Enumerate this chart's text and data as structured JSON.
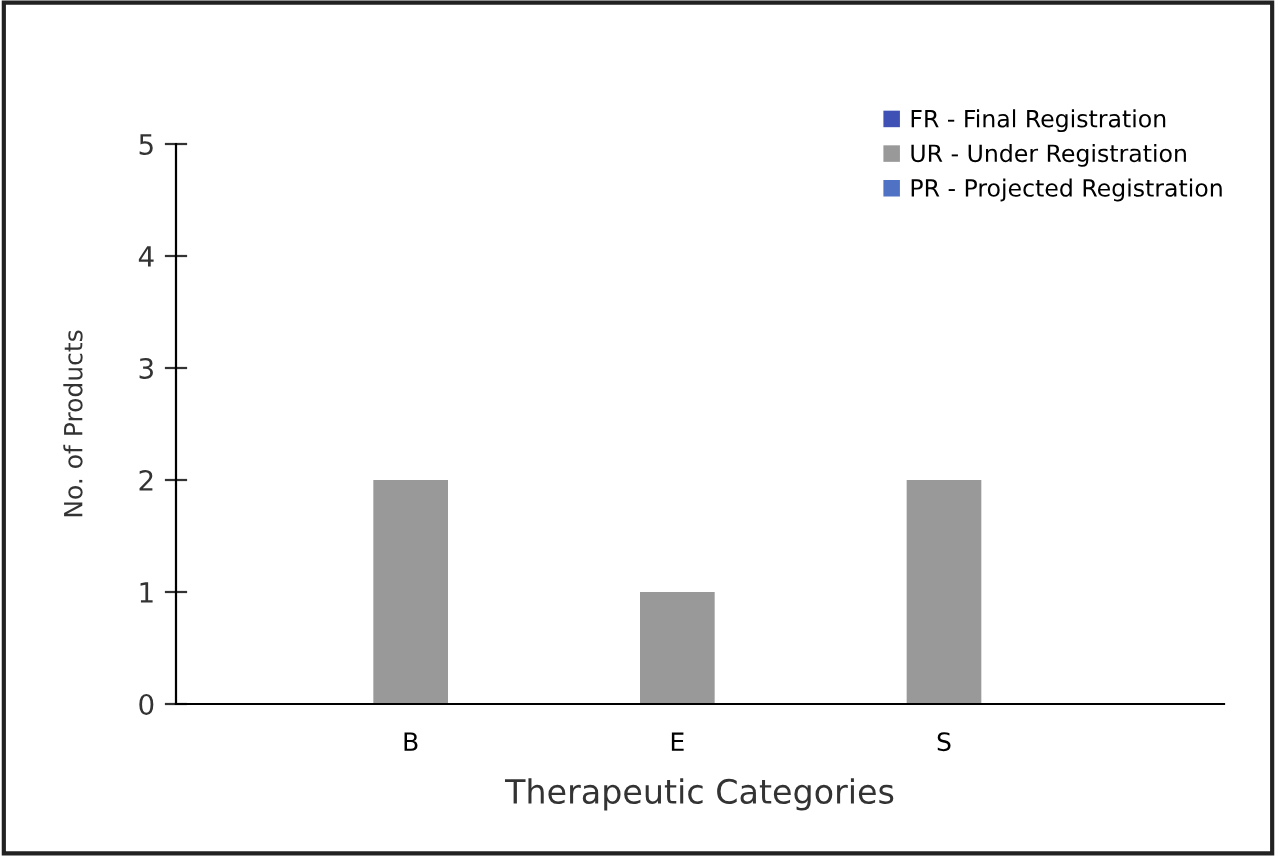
{
  "chart_data": {
    "type": "bar",
    "xlabel": "Therapeutic Categories",
    "ylabel": "No. of Products",
    "categories": [
      "B",
      "E",
      "S"
    ],
    "series": [
      {
        "name": "FR - Final Registration",
        "color": "#3f51b5",
        "values": [
          0,
          0,
          0
        ]
      },
      {
        "name": "UR - Under Registration",
        "color": "#999999",
        "values": [
          2,
          1,
          2
        ]
      },
      {
        "name": "PR - Projected Registration",
        "color": "#4f72c4",
        "values": [
          0,
          0,
          0
        ]
      }
    ],
    "ylim": [
      0,
      5
    ],
    "yticks": [
      0,
      1,
      2,
      3,
      4,
      5
    ],
    "grid": false,
    "legend": "top right"
  }
}
